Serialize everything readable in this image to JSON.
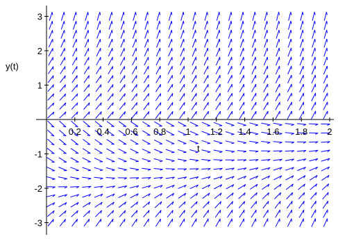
{
  "chart_data": {
    "type": "direction_field",
    "title": "",
    "xlabel": "t",
    "ylabel": "y(t)",
    "xlim": [
      0,
      2
    ],
    "ylim": [
      -3.1,
      3.2
    ],
    "x_tick_labels": [
      "0.2",
      "0.4",
      "0.6",
      "0.8",
      "1",
      "1.2",
      "1.4",
      "1.6",
      "1.8",
      "2"
    ],
    "x_ticks": [
      0.2,
      0.4,
      0.6,
      0.8,
      1.0,
      1.2,
      1.4,
      1.6,
      1.8,
      2.0
    ],
    "y_tick_labels": [
      "-3",
      "-2",
      "-1",
      "1",
      "2",
      "3"
    ],
    "y_ticks": [
      -3,
      -2,
      -1,
      1,
      2,
      3
    ],
    "grid": false,
    "legend": "none",
    "arrow_color": "#0000ff",
    "axis_color": "#000000",
    "field": {
      "columns": 24,
      "rows": 24,
      "t_range": [
        0.03,
        1.97
      ],
      "y_range": [
        -3.0,
        3.0
      ],
      "expression": "dy/dt = 2*t + y^2 - 4 when y < 0; otherwise mostly steep positive"
    }
  }
}
